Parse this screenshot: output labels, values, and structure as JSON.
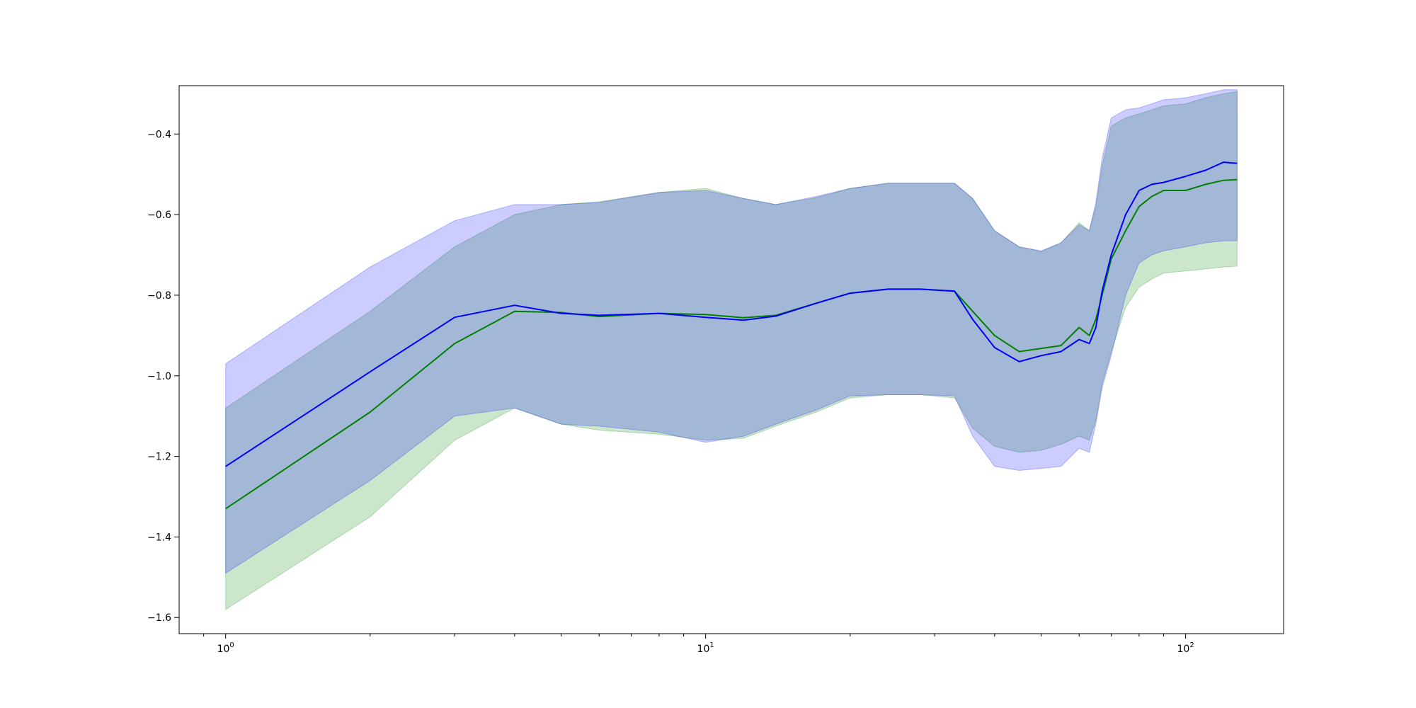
{
  "chart_data": {
    "type": "line",
    "title": "",
    "xlabel": "",
    "ylabel": "",
    "xscale": "log",
    "xlim": [
      0.8,
      160
    ],
    "ylim": [
      -1.64,
      -0.28
    ],
    "grid": false,
    "legend": "none",
    "x_ticks": [
      {
        "value": 1,
        "base": "10",
        "exp": "0"
      },
      {
        "value": 10,
        "base": "10",
        "exp": "1"
      },
      {
        "value": 100,
        "base": "10",
        "exp": "2"
      }
    ],
    "y_ticks": [
      {
        "value": -1.6,
        "label": "−1.6"
      },
      {
        "value": -1.4,
        "label": "−1.4"
      },
      {
        "value": -1.2,
        "label": "−1.2"
      },
      {
        "value": -1.0,
        "label": "−1.0"
      },
      {
        "value": -0.8,
        "label": "−0.8"
      },
      {
        "value": -0.6,
        "label": "−0.6"
      },
      {
        "value": -0.4,
        "label": "−0.4"
      }
    ],
    "series": [
      {
        "color": "#008000",
        "band_color": "#008000",
        "x": [
          1,
          2,
          3,
          4,
          5,
          6,
          8,
          10,
          12,
          14,
          17,
          20,
          24,
          28,
          33,
          36,
          40,
          45,
          50,
          55,
          60,
          63,
          65,
          67,
          70,
          75,
          80,
          85,
          90,
          100,
          110,
          120,
          128
        ],
        "y": [
          -1.33,
          -1.09,
          -0.92,
          -0.84,
          -0.843,
          -0.853,
          -0.845,
          -0.848,
          -0.856,
          -0.85,
          -0.82,
          -0.795,
          -0.785,
          -0.785,
          -0.79,
          -0.84,
          -0.9,
          -0.94,
          -0.932,
          -0.925,
          -0.88,
          -0.9,
          -0.86,
          -0.8,
          -0.71,
          -0.64,
          -0.58,
          -0.555,
          -0.54,
          -0.54,
          -0.525,
          -0.515,
          -0.513
        ],
        "upper": [
          -1.08,
          -0.84,
          -0.68,
          -0.6,
          -0.575,
          -0.568,
          -0.545,
          -0.535,
          -0.56,
          -0.575,
          -0.558,
          -0.535,
          -0.522,
          -0.522,
          -0.522,
          -0.56,
          -0.64,
          -0.68,
          -0.692,
          -0.67,
          -0.62,
          -0.64,
          -0.58,
          -0.48,
          -0.38,
          -0.36,
          -0.35,
          -0.34,
          -0.33,
          -0.325,
          -0.31,
          -0.3,
          -0.295
        ],
        "lower": [
          -1.58,
          -1.35,
          -1.16,
          -1.08,
          -1.12,
          -1.135,
          -1.145,
          -1.16,
          -1.155,
          -1.125,
          -1.09,
          -1.055,
          -1.047,
          -1.047,
          -1.055,
          -1.13,
          -1.175,
          -1.19,
          -1.185,
          -1.17,
          -1.15,
          -1.16,
          -1.11,
          -1.02,
          -0.94,
          -0.83,
          -0.78,
          -0.76,
          -0.745,
          -0.74,
          -0.735,
          -0.73,
          -0.728
        ]
      },
      {
        "color": "#0000ff",
        "band_color": "#0000ff",
        "x": [
          1,
          2,
          3,
          4,
          5,
          6,
          8,
          10,
          12,
          14,
          17,
          20,
          24,
          28,
          33,
          36,
          40,
          45,
          50,
          55,
          60,
          63,
          65,
          67,
          70,
          75,
          80,
          85,
          90,
          100,
          110,
          120,
          128
        ],
        "y": [
          -1.225,
          -0.99,
          -0.855,
          -0.825,
          -0.845,
          -0.85,
          -0.845,
          -0.855,
          -0.862,
          -0.852,
          -0.82,
          -0.795,
          -0.785,
          -0.785,
          -0.79,
          -0.86,
          -0.93,
          -0.965,
          -0.95,
          -0.94,
          -0.91,
          -0.92,
          -0.88,
          -0.79,
          -0.7,
          -0.6,
          -0.54,
          -0.525,
          -0.52,
          -0.505,
          -0.49,
          -0.47,
          -0.473
        ],
        "upper": [
          -0.97,
          -0.73,
          -0.615,
          -0.575,
          -0.575,
          -0.57,
          -0.545,
          -0.54,
          -0.56,
          -0.575,
          -0.555,
          -0.535,
          -0.522,
          -0.522,
          -0.522,
          -0.56,
          -0.64,
          -0.68,
          -0.69,
          -0.67,
          -0.625,
          -0.64,
          -0.57,
          -0.46,
          -0.36,
          -0.34,
          -0.335,
          -0.325,
          -0.315,
          -0.31,
          -0.3,
          -0.29,
          -0.29
        ],
        "lower": [
          -1.49,
          -1.26,
          -1.1,
          -1.08,
          -1.12,
          -1.125,
          -1.14,
          -1.165,
          -1.15,
          -1.12,
          -1.085,
          -1.05,
          -1.047,
          -1.047,
          -1.05,
          -1.15,
          -1.225,
          -1.235,
          -1.23,
          -1.225,
          -1.18,
          -1.19,
          -1.12,
          -1.03,
          -0.95,
          -0.8,
          -0.72,
          -0.7,
          -0.69,
          -0.68,
          -0.67,
          -0.665,
          -0.665
        ]
      }
    ]
  }
}
